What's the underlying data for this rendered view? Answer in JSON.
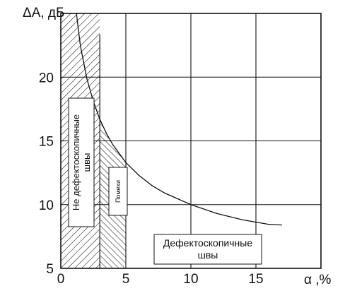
{
  "chart_data": {
    "type": "line",
    "xlabel": "α ,%",
    "ylabel": "ΔA, дБ",
    "xlim": [
      0,
      20
    ],
    "ylim": [
      5,
      25
    ],
    "x_ticks": [
      "0",
      "5",
      "10",
      "15"
    ],
    "y_ticks": [
      "5",
      "10",
      "15",
      "20"
    ],
    "x_tick_values": [
      0,
      5,
      10,
      15
    ],
    "y_tick_values": [
      5,
      10,
      15,
      20
    ],
    "grid": true,
    "series": [
      {
        "x": [
          1.2,
          1.5,
          2,
          2.5,
          3,
          3.5,
          4,
          5,
          6,
          7,
          8,
          10,
          12,
          14,
          16,
          17
        ],
        "y": [
          25,
          22.5,
          19.9,
          18.1,
          16.7,
          15.6,
          14.7,
          13.3,
          12.3,
          11.5,
          10.9,
          10.0,
          9.3,
          8.8,
          8.45,
          8.4
        ]
      }
    ],
    "regions": [
      {
        "label_lines": [
          "Не дефектоскопичные",
          "швы"
        ],
        "x_range": [
          0,
          3
        ],
        "hatch": "diagonal-right"
      },
      {
        "label_lines": [
          "Помехи"
        ],
        "x_range": [
          3,
          5
        ],
        "hatch": "diagonal-left"
      },
      {
        "label_lines": [
          "Дефектоскопичные",
          "швы"
        ]
      }
    ]
  }
}
